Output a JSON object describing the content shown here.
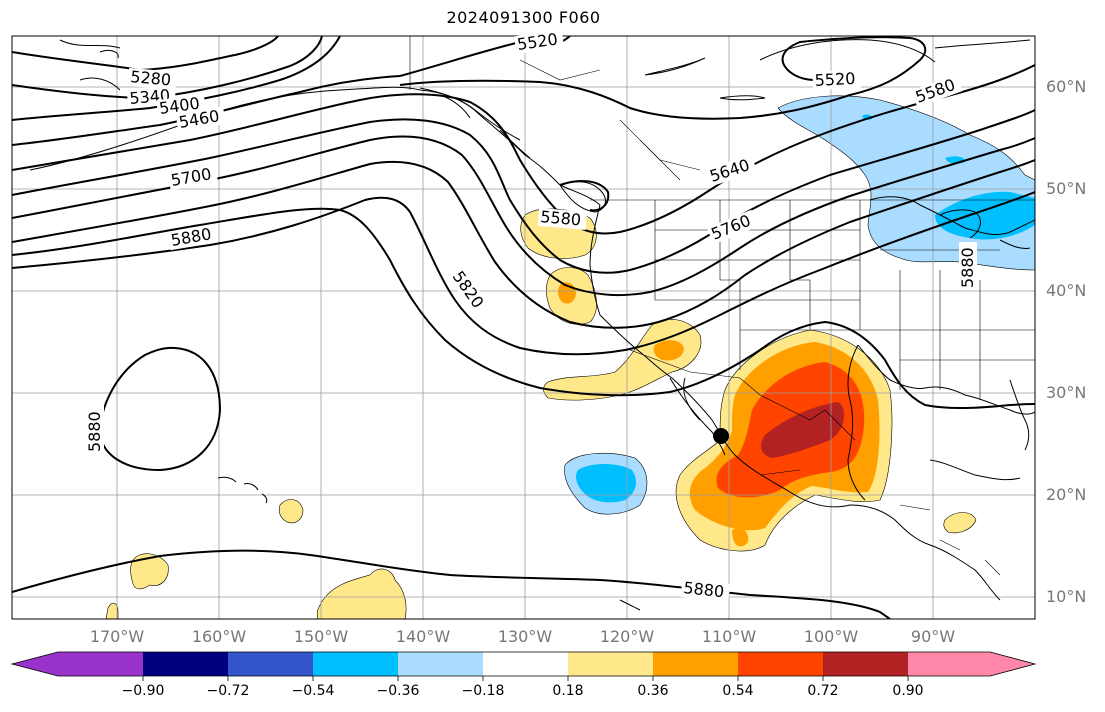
{
  "title": "2024091300 F060",
  "map": {
    "latitude_labels": [
      "60°N",
      "50°N",
      "40°N",
      "30°N",
      "20°N",
      "10°N"
    ],
    "longitude_labels": [
      "170°W",
      "160°W",
      "150°W",
      "140°W",
      "130°W",
      "120°W",
      "110°W",
      "100°W",
      "90°W"
    ],
    "contour_labels": [
      "5280",
      "5340",
      "5400",
      "5460",
      "5520",
      "5520",
      "5580",
      "5580",
      "5640",
      "5700",
      "5760",
      "5820",
      "5880",
      "5880",
      "5880",
      "5880"
    ],
    "storm_marker": "filled-black-circle",
    "contour_color": "#000000",
    "coastline_color": "#000000",
    "grid_color": "#9e9e9e"
  },
  "colorbar": {
    "tick_labels": [
      "−0.90",
      "−0.72",
      "−0.54",
      "−0.36",
      "−0.18",
      "0.18",
      "0.36",
      "0.54",
      "0.72",
      "0.90"
    ],
    "colors": [
      "#9933cc",
      "#00007f",
      "#3355cc",
      "#00bfff",
      "#aadcff",
      "#ffffff",
      "#ffe88a",
      "#ffa000",
      "#ff4400",
      "#b22222",
      "#ff88aa"
    ]
  }
}
